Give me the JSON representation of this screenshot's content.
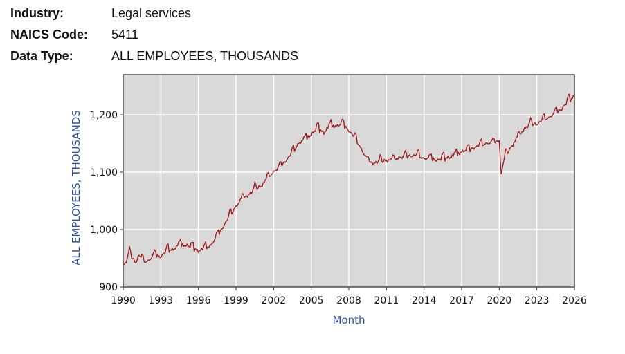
{
  "info": {
    "industry_label": "Industry:",
    "industry_value": "Legal services",
    "naics_label": "NAICS Code:",
    "naics_value": "5411",
    "data_type_label": "Data Type:",
    "data_type_value": "ALL EMPLOYEES, THOUSANDS"
  },
  "chart_data": {
    "type": "line",
    "title": "",
    "xlabel": "Month",
    "ylabel": "ALL EMPLOYEES, THOUSANDS",
    "xlim": [
      1990,
      2026
    ],
    "ylim": [
      900,
      1270
    ],
    "x_ticks": [
      "1990",
      "1993",
      "1996",
      "1999",
      "2002",
      "2005",
      "2008",
      "2011",
      "2014",
      "2017",
      "2020",
      "2023",
      "2026"
    ],
    "y_ticks": [
      {
        "value": 900,
        "label": "900"
      },
      {
        "value": 1000,
        "label": "1,000"
      },
      {
        "value": 1100,
        "label": "1,100"
      },
      {
        "value": 1200,
        "label": "1,200"
      }
    ],
    "grid": true,
    "plot_background": "#d9d9d9",
    "line_color": "#a11d1d",
    "series": [
      {
        "x": [
          1990.0,
          1990.25,
          1990.5,
          1990.75,
          1991.0,
          1991.25,
          1991.5,
          1991.75,
          1992.0,
          1992.5,
          1993.0,
          1993.5,
          1994.0,
          1994.5,
          1995.0,
          1995.5,
          1996.0,
          1996.5,
          1997.0,
          1997.5,
          1998.0,
          1998.5,
          1999.0,
          1999.5,
          2000.0,
          2000.5,
          2001.0,
          2001.5,
          2002.0,
          2002.5,
          2003.0,
          2003.5,
          2004.0,
          2004.5,
          2005.0,
          2005.5,
          2006.0,
          2006.5,
          2007.0,
          2007.5,
          2008.0,
          2008.5,
          2009.0,
          2009.5,
          2010.0,
          2010.5,
          2011.0,
          2011.5,
          2012.0,
          2012.5,
          2013.0,
          2013.5,
          2014.0,
          2014.5,
          2015.0,
          2015.5,
          2016.0,
          2016.5,
          2017.0,
          2017.5,
          2018.0,
          2018.5,
          2019.0,
          2019.5,
          2020.0,
          2020.15,
          2020.25,
          2020.5,
          2021.0,
          2021.5,
          2022.0,
          2022.5,
          2023.0,
          2023.5,
          2024.0,
          2024.5,
          2025.0,
          2025.5,
          2026.0
        ],
        "y": [
          935,
          945,
          960,
          950,
          942,
          955,
          948,
          944,
          945,
          957,
          952,
          965,
          965,
          975,
          972,
          970,
          962,
          968,
          972,
          990,
          1005,
          1025,
          1040,
          1055,
          1060,
          1072,
          1075,
          1090,
          1100,
          1110,
          1120,
          1135,
          1150,
          1158,
          1165,
          1178,
          1168,
          1182,
          1180,
          1185,
          1172,
          1160,
          1140,
          1120,
          1115,
          1120,
          1120,
          1122,
          1125,
          1128,
          1128,
          1130,
          1123,
          1125,
          1120,
          1125,
          1125,
          1130,
          1135,
          1140,
          1142,
          1148,
          1150,
          1152,
          1155,
          1095,
          1110,
          1130,
          1145,
          1162,
          1175,
          1185,
          1183,
          1192,
          1195,
          1205,
          1210,
          1225,
          1232
        ]
      }
    ]
  }
}
